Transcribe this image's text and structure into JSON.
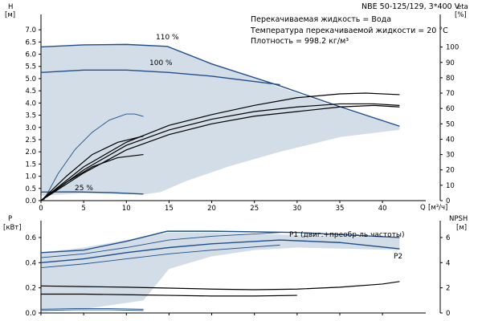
{
  "header": {
    "title": "NBE 50-125/129, 3*400 V",
    "lines": [
      "Перекачиваемая жидкость = Вода",
      "Температура перекачиваемой жидкости = 20 °C",
      "Плотность = 998.2 кг/м³"
    ]
  },
  "colors": {
    "curve": "#1f4e8c",
    "area_fill": "#d3dde8",
    "area_fill_light": "#e6edf4",
    "axis": "#000000",
    "efficiency_curve": "#000000"
  },
  "chart_data": [
    {
      "type": "line",
      "name": "head-efficiency",
      "x_axis": {
        "label": "Q",
        "unit": "[м³/ч]",
        "range": [
          0,
          43
        ],
        "ticks": [
          0,
          5,
          10,
          15,
          20,
          25,
          30,
          35,
          40
        ]
      },
      "y_axis": {
        "label": "H",
        "unit": "[м]",
        "range": [
          0,
          7.3
        ],
        "ticks": [
          0.0,
          0.5,
          1.0,
          1.5,
          2.0,
          2.5,
          3.0,
          3.5,
          4.0,
          4.5,
          5.0,
          5.5,
          6.0,
          6.5,
          7.0
        ]
      },
      "y2_axis": {
        "label": "eta",
        "unit": "[%]",
        "range": [
          0,
          116
        ],
        "ticks": [
          0,
          10,
          20,
          30,
          40,
          50,
          60,
          70,
          80,
          90,
          100
        ]
      },
      "grid": false,
      "operating_range": [
        [
          0,
          0.2
        ],
        [
          0,
          6.3
        ],
        [
          5,
          6.4
        ],
        [
          10,
          6.42
        ],
        [
          14.8,
          6.3
        ],
        [
          20,
          5.6
        ],
        [
          25,
          5.0
        ],
        [
          30,
          4.4
        ],
        [
          35,
          3.8
        ],
        [
          42,
          3.05
        ],
        [
          42,
          2.9
        ],
        [
          35,
          2.6
        ],
        [
          28,
          2.0
        ],
        [
          22,
          1.4
        ],
        [
          17,
          0.8
        ],
        [
          14,
          0.35
        ],
        [
          12,
          0.25
        ],
        [
          5,
          0.3
        ],
        [
          0,
          0.2
        ]
      ],
      "series": [
        {
          "label": "110 %",
          "axis": "left",
          "points": [
            [
              0,
              6.3
            ],
            [
              5,
              6.38
            ],
            [
              10,
              6.4
            ],
            [
              14.8,
              6.32
            ],
            [
              20,
              5.6
            ],
            [
              28,
              4.7
            ],
            [
              35,
              3.85
            ],
            [
              42,
              3.05
            ]
          ]
        },
        {
          "label": "100 %",
          "axis": "left",
          "points": [
            [
              0,
              5.25
            ],
            [
              5,
              5.35
            ],
            [
              10,
              5.35
            ],
            [
              15,
              5.25
            ],
            [
              20,
              5.1
            ],
            [
              28,
              4.75
            ]
          ]
        },
        {
          "label": "25 %",
          "axis": "left",
          "points": [
            [
              0,
              0.35
            ],
            [
              4,
              0.36
            ],
            [
              8,
              0.33
            ],
            [
              12,
              0.27
            ]
          ]
        },
        {
          "label": "",
          "axis": "left",
          "points": [
            [
              0.3,
              0
            ],
            [
              2,
              1.1
            ],
            [
              4,
              2.1
            ],
            [
              6,
              2.8
            ],
            [
              8,
              3.3
            ],
            [
              10,
              3.55
            ],
            [
              11,
              3.55
            ],
            [
              12,
              3.45
            ]
          ]
        },
        {
          "label": "",
          "axis": "right",
          "points": [
            [
              0,
              0
            ],
            [
              5,
              22
            ],
            [
              10,
              38
            ],
            [
              15,
              49
            ],
            [
              20,
              56
            ],
            [
              25,
              62
            ],
            [
              30,
              67
            ],
            [
              35,
              69.5
            ],
            [
              38,
              70
            ],
            [
              42,
              69
            ]
          ]
        },
        {
          "label": "",
          "axis": "right",
          "points": [
            [
              0,
              0
            ],
            [
              5,
              20
            ],
            [
              10,
              36
            ],
            [
              15,
              46
            ],
            [
              20,
              53
            ],
            [
              25,
              58
            ],
            [
              30,
              61
            ],
            [
              35,
              63
            ],
            [
              39,
              63
            ],
            [
              42,
              62
            ]
          ]
        },
        {
          "label": "",
          "axis": "right",
          "points": [
            [
              0,
              0
            ],
            [
              5,
              18
            ],
            [
              10,
              33
            ],
            [
              15,
              43
            ],
            [
              20,
              50
            ],
            [
              25,
              55
            ],
            [
              30,
              58
            ],
            [
              35,
              61
            ],
            [
              39,
              62
            ],
            [
              42,
              61
            ]
          ]
        },
        {
          "label": "",
          "axis": "right",
          "points": [
            [
              0,
              0
            ],
            [
              3,
              12
            ],
            [
              6,
              22
            ],
            [
              9,
              28
            ],
            [
              12,
              30
            ]
          ]
        },
        {
          "label": "",
          "axis": "right",
          "points": [
            [
              0,
              0
            ],
            [
              3,
              16
            ],
            [
              6,
              30
            ],
            [
              9,
              38
            ],
            [
              12,
              42
            ]
          ]
        }
      ]
    },
    {
      "type": "line",
      "name": "power-npsh",
      "x_axis": {
        "label": "",
        "unit": "",
        "range": [
          0,
          43
        ],
        "ticks": [
          0,
          5,
          10,
          15,
          20,
          25,
          30,
          35,
          40
        ]
      },
      "y_axis": {
        "label": "P",
        "unit": "[кВт]",
        "range": [
          0,
          0.67
        ],
        "ticks": [
          0.0,
          0.2,
          0.4,
          0.6
        ]
      },
      "y2_axis": {
        "label": "NPSH",
        "unit": "[м]",
        "range": [
          0,
          6.7
        ],
        "ticks": [
          0,
          2,
          4,
          6
        ]
      },
      "grid": false,
      "operating_range": [
        [
          0,
          0.03
        ],
        [
          0,
          0.48
        ],
        [
          5,
          0.52
        ],
        [
          10,
          0.58
        ],
        [
          15,
          0.64
        ],
        [
          20,
          0.64
        ],
        [
          30,
          0.62
        ],
        [
          42,
          0.6
        ],
        [
          42,
          0.5
        ],
        [
          30,
          0.52
        ],
        [
          25,
          0.5
        ],
        [
          20,
          0.45
        ],
        [
          15,
          0.35
        ],
        [
          12,
          0.1
        ],
        [
          5,
          0.03
        ],
        [
          0,
          0.03
        ]
      ],
      "annotations": [
        "P1 (двиг.+преобр-ль частоты)",
        "P2"
      ],
      "series": [
        {
          "label": "P1 (двиг.+преобр-ль частоты)",
          "axis": "left",
          "points": [
            [
              0,
              0.48
            ],
            [
              5,
              0.5
            ],
            [
              10,
              0.57
            ],
            [
              14.8,
              0.65
            ],
            [
              20,
              0.65
            ],
            [
              30,
              0.64
            ],
            [
              42,
              0.6
            ]
          ]
        },
        {
          "label": "P2",
          "axis": "left",
          "points": [
            [
              0,
              0.4
            ],
            [
              5,
              0.43
            ],
            [
              10,
              0.48
            ],
            [
              15,
              0.52
            ],
            [
              20,
              0.55
            ],
            [
              28,
              0.58
            ],
            [
              35,
              0.56
            ],
            [
              42,
              0.51
            ]
          ]
        },
        {
          "label": "",
          "axis": "left",
          "points": [
            [
              0,
              0.44
            ],
            [
              5,
              0.47
            ],
            [
              10,
              0.52
            ],
            [
              15,
              0.58
            ],
            [
              20,
              0.61
            ],
            [
              28,
              0.64
            ]
          ]
        },
        {
          "label": "",
          "axis": "left",
          "points": [
            [
              0,
              0.36
            ],
            [
              5,
              0.39
            ],
            [
              10,
              0.43
            ],
            [
              15,
              0.47
            ],
            [
              20,
              0.5
            ],
            [
              28,
              0.54
            ]
          ]
        },
        {
          "label": "",
          "axis": "left",
          "points": [
            [
              0,
              0.03
            ],
            [
              4,
              0.035
            ],
            [
              8,
              0.035
            ],
            [
              12,
              0.03
            ]
          ]
        },
        {
          "label": "",
          "axis": "left",
          "points": [
            [
              0,
              0.02
            ],
            [
              4,
              0.025
            ],
            [
              8,
              0.025
            ],
            [
              12,
              0.02
            ]
          ]
        },
        {
          "label": "",
          "axis": "right",
          "points": [
            [
              0,
              2.15
            ],
            [
              5,
              2.1
            ],
            [
              10,
              2.05
            ],
            [
              15,
              1.98
            ],
            [
              20,
              1.9
            ],
            [
              25,
              1.85
            ],
            [
              30,
              1.9
            ],
            [
              35,
              2.05
            ],
            [
              40,
              2.3
            ],
            [
              42,
              2.5
            ]
          ]
        },
        {
          "label": "",
          "axis": "right",
          "points": [
            [
              0,
              1.5
            ],
            [
              5,
              1.5
            ],
            [
              10,
              1.45
            ],
            [
              15,
              1.4
            ],
            [
              20,
              1.35
            ],
            [
              25,
              1.35
            ],
            [
              30,
              1.4
            ]
          ]
        }
      ]
    }
  ]
}
